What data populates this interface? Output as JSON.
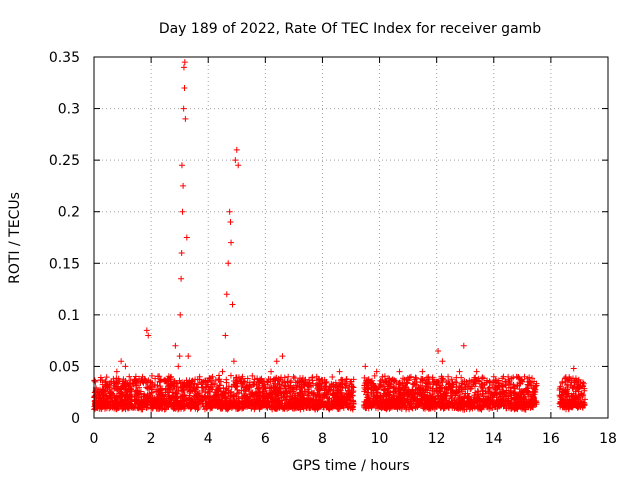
{
  "chart_data": {
    "type": "scatter",
    "title": "Day 189 of 2022, Rate Of TEC Index for receiver gamb",
    "xlabel": "GPS time / hours",
    "ylabel": "ROTI / TECUs",
    "xlim": [
      0,
      18
    ],
    "ylim": [
      0,
      0.35
    ],
    "x_ticks": [
      0,
      2,
      4,
      6,
      8,
      10,
      12,
      14,
      16,
      18
    ],
    "y_ticks": [
      0,
      0.05,
      0.1,
      0.15,
      0.2,
      0.25,
      0.3,
      0.35
    ],
    "x_tick_labels": [
      "0",
      "2",
      "4",
      "6",
      "8",
      "10",
      "12",
      "14",
      "16",
      "18"
    ],
    "y_tick_labels": [
      "0",
      "0.05",
      "0.1",
      "0.15",
      "0.2",
      "0.25",
      "0.3",
      "0.35"
    ],
    "grid": true,
    "marker": "+",
    "color": "#ff0000",
    "series": [
      {
        "x": [
          0.05,
          0.2,
          0.4,
          0.6,
          0.8,
          0.95,
          1.1,
          1.3,
          1.5,
          1.7,
          1.85,
          1.9,
          2.1,
          2.3,
          2.5,
          2.7,
          2.85,
          2.9,
          2.95,
          3.0,
          3.02,
          3.05,
          3.07,
          3.08,
          3.1,
          3.12,
          3.14,
          3.15,
          3.17,
          3.18,
          3.2,
          3.25,
          3.3,
          3.5,
          3.7,
          3.9,
          4.1,
          4.3,
          4.5,
          4.6,
          4.65,
          4.7,
          4.75,
          4.78,
          4.8,
          4.85,
          4.9,
          4.95,
          5.0,
          5.05,
          5.2,
          5.4,
          5.6,
          5.8,
          6.0,
          6.2,
          6.4,
          6.6,
          6.8,
          7.0,
          7.2,
          7.4,
          7.6,
          7.8,
          8.0,
          8.2,
          8.4,
          8.6,
          8.8,
          9.0,
          9.5,
          9.7,
          9.9,
          10.1,
          10.3,
          10.5,
          10.7,
          10.9,
          11.1,
          11.3,
          11.5,
          11.7,
          11.9,
          12.05,
          12.2,
          12.4,
          12.6,
          12.8,
          12.95,
          13.2,
          13.4,
          13.6,
          13.8,
          14.0,
          14.2,
          14.4,
          14.6,
          14.8,
          15.0,
          15.2,
          15.4,
          16.4,
          16.6,
          16.8,
          17.0
        ],
        "y": [
          0.035,
          0.02,
          0.03,
          0.025,
          0.045,
          0.055,
          0.05,
          0.03,
          0.025,
          0.04,
          0.085,
          0.08,
          0.03,
          0.035,
          0.025,
          0.04,
          0.07,
          0.03,
          0.05,
          0.06,
          0.1,
          0.135,
          0.16,
          0.245,
          0.2,
          0.225,
          0.3,
          0.34,
          0.32,
          0.345,
          0.29,
          0.175,
          0.06,
          0.03,
          0.04,
          0.025,
          0.035,
          0.03,
          0.045,
          0.08,
          0.12,
          0.15,
          0.2,
          0.19,
          0.17,
          0.11,
          0.055,
          0.25,
          0.26,
          0.245,
          0.04,
          0.03,
          0.035,
          0.025,
          0.03,
          0.045,
          0.055,
          0.06,
          0.04,
          0.03,
          0.025,
          0.035,
          0.03,
          0.04,
          0.035,
          0.025,
          0.03,
          0.045,
          0.035,
          0.02,
          0.05,
          0.03,
          0.045,
          0.04,
          0.025,
          0.035,
          0.045,
          0.03,
          0.04,
          0.035,
          0.045,
          0.03,
          0.035,
          0.065,
          0.055,
          0.04,
          0.025,
          0.045,
          0.07,
          0.035,
          0.045,
          0.03,
          0.025,
          0.04,
          0.03,
          0.035,
          0.025,
          0.04,
          0.035,
          0.03,
          0.025,
          0.035,
          0.03,
          0.048,
          0.03
        ]
      }
    ]
  }
}
